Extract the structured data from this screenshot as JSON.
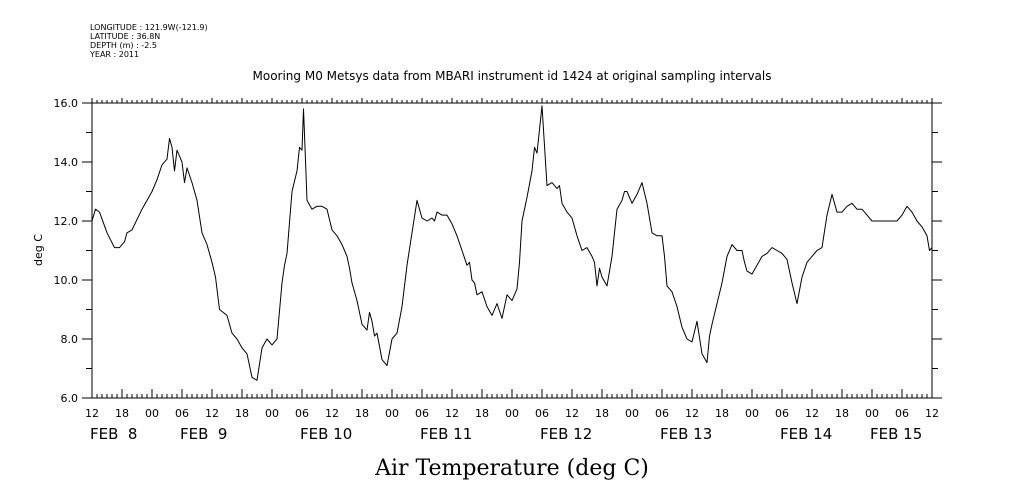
{
  "header": {
    "longitude": "LONGITUDE : 121.9W(-121.9)",
    "latitude": "LATITUDE : 36.8N",
    "depth": "DEPTH (m) : -2.5",
    "year": "YEAR : 2011"
  },
  "chart_data": {
    "type": "line",
    "title": "Mooring M0 Metsys data from MBARI instrument id 1424 at original sampling intervals",
    "xlabel": "Air Temperature (deg C)",
    "ylabel": "deg C",
    "ylim": [
      6.0,
      16.0
    ],
    "yticks": [
      "6.0",
      "8.0",
      "10.0",
      "12.0",
      "14.0",
      "16.0"
    ],
    "xlim_hours": [
      0,
      168
    ],
    "hour_tick_labels": [
      "12",
      "18",
      "00",
      "06",
      "12",
      "18",
      "00",
      "06",
      "12",
      "18",
      "00",
      "06",
      "12",
      "18",
      "00",
      "06",
      "12",
      "18",
      "00",
      "06",
      "12",
      "18",
      "00",
      "06",
      "12",
      "18",
      "00",
      "06",
      "12"
    ],
    "day_labels": [
      {
        "label": "FEB  8",
        "at_hour": 0
      },
      {
        "label": "FEB  9",
        "at_hour": 18
      },
      {
        "label": "FEB 10",
        "at_hour": 42
      },
      {
        "label": "FEB 11",
        "at_hour": 66
      },
      {
        "label": "FEB 12",
        "at_hour": 90
      },
      {
        "label": "FEB 13",
        "at_hour": 114
      },
      {
        "label": "FEB 14",
        "at_hour": 138
      },
      {
        "label": "FEB 15",
        "at_hour": 156
      }
    ],
    "series": [
      {
        "x_hours": [
          0,
          0.7,
          1.5,
          3,
          4.5,
          5.5,
          6.5,
          7,
          8,
          10,
          12,
          13,
          14,
          15,
          15.5,
          16,
          16.5,
          17,
          17.5,
          18,
          18.5,
          19,
          20,
          21,
          22,
          23,
          24,
          24.7,
          25.5,
          27,
          28,
          29,
          30,
          31,
          32,
          33,
          34,
          35,
          36,
          37,
          38,
          38.5,
          39,
          40,
          41,
          41.5,
          42,
          42.3,
          42.6,
          43,
          44,
          45,
          46,
          47,
          48,
          49,
          50,
          50.5,
          51,
          51.5,
          52,
          53,
          54,
          55,
          55.5,
          56,
          56.5,
          57,
          58,
          59,
          60,
          61,
          62,
          63,
          64,
          65,
          66,
          67,
          68,
          68.5,
          69,
          70,
          71,
          72,
          73,
          74,
          75,
          75.5,
          76,
          76.5,
          77,
          78,
          79,
          80,
          81,
          82,
          83,
          84,
          85,
          85.5,
          86,
          87,
          88,
          88.5,
          89,
          90,
          91,
          92,
          93,
          93.5,
          94,
          95,
          96,
          97,
          98,
          99,
          100,
          100.5,
          101,
          101.5,
          102,
          103,
          104,
          105,
          106,
          106.5,
          107,
          108,
          109,
          110,
          111,
          112,
          113,
          114,
          114.5,
          115,
          116,
          117,
          118,
          119,
          120,
          121,
          122,
          123,
          123.5,
          124,
          125,
          126,
          127,
          128,
          129,
          130,
          130.5,
          131,
          132,
          133,
          134,
          135,
          136,
          137,
          138,
          139,
          140,
          141,
          142,
          143,
          144,
          145,
          146,
          147,
          148,
          149,
          150,
          151,
          152,
          153,
          154,
          155,
          156,
          157,
          158,
          159,
          160,
          161,
          162,
          163,
          164,
          165,
          166,
          167,
          167.5,
          168
        ],
        "values": [
          12.0,
          12.4,
          12.3,
          11.6,
          11.1,
          11.1,
          11.3,
          11.6,
          11.7,
          12.4,
          13.0,
          13.4,
          13.9,
          14.1,
          14.8,
          14.5,
          13.7,
          14.4,
          14.2,
          14.0,
          13.3,
          13.8,
          13.3,
          12.7,
          11.6,
          11.2,
          10.6,
          10.1,
          9.0,
          8.8,
          8.2,
          8.0,
          7.7,
          7.5,
          6.7,
          6.6,
          7.7,
          8.0,
          7.8,
          8.0,
          9.9,
          10.5,
          10.9,
          13.0,
          13.7,
          14.5,
          14.4,
          15.8,
          14.5,
          12.7,
          12.4,
          12.5,
          12.5,
          12.4,
          11.7,
          11.5,
          11.2,
          11.0,
          10.8,
          10.4,
          9.9,
          9.3,
          8.5,
          8.3,
          8.9,
          8.6,
          8.1,
          8.2,
          7.3,
          7.1,
          8.0,
          8.2,
          9.1,
          10.5,
          11.6,
          12.7,
          12.1,
          12.0,
          12.1,
          12.0,
          12.3,
          12.2,
          12.2,
          11.9,
          11.5,
          11.0,
          10.5,
          10.6,
          10.0,
          9.9,
          9.5,
          9.6,
          9.1,
          8.8,
          9.2,
          8.7,
          9.5,
          9.3,
          9.7,
          10.6,
          12.0,
          12.8,
          13.7,
          14.5,
          14.3,
          15.9,
          13.2,
          13.3,
          13.1,
          13.2,
          12.6,
          12.3,
          12.1,
          11.5,
          11.0,
          11.1,
          10.8,
          10.6,
          9.8,
          10.4,
          10.1,
          9.8,
          10.8,
          12.4,
          12.7,
          13.0,
          13.0,
          12.6,
          12.9,
          13.3,
          12.6,
          11.6,
          11.5,
          11.5,
          10.8,
          9.8,
          9.6,
          9.1,
          8.4,
          8.0,
          7.9,
          8.6,
          7.5,
          7.2,
          8.1,
          8.5,
          9.2,
          9.9,
          10.8,
          11.2,
          11.0,
          11.0,
          10.6,
          10.3,
          10.2,
          10.5,
          10.8,
          10.9,
          11.1,
          11.0,
          10.9,
          10.7,
          9.9,
          9.2,
          10.1,
          10.6,
          10.8,
          11.0,
          11.1,
          12.2,
          12.9,
          12.3,
          12.3,
          12.5,
          12.6,
          12.4,
          12.4,
          12.2,
          12.0,
          12.0,
          12.0,
          12.0,
          12.0,
          12.0,
          12.2,
          12.5,
          12.3,
          12.0,
          11.8,
          11.5,
          11.0,
          11.1
        ]
      }
    ]
  }
}
